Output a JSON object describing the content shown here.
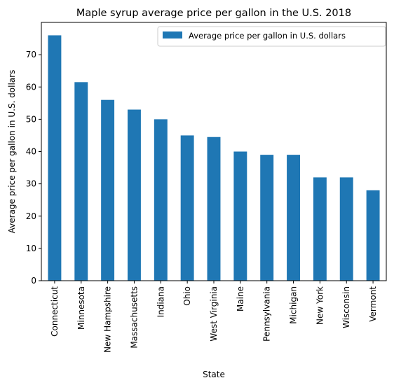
{
  "chart_data": {
    "type": "bar",
    "title": "Maple syrup average price per gallon in the U.S. 2018",
    "xlabel": "State",
    "ylabel": "Average price per gallon in U.S. dollars",
    "categories": [
      "Connecticut",
      "Minnesota",
      "New Hampshire",
      "Massachusetts",
      "Indiana",
      "Ohio",
      "West Virginia",
      "Maine",
      "Pennsylvania",
      "Michigan",
      "New York",
      "Wisconsin",
      "Vermont"
    ],
    "series": [
      {
        "name": "Average price per gallon in U.S. dollars",
        "color": "#1f77b4",
        "values": [
          76.0,
          61.5,
          56.0,
          53.0,
          50.0,
          45.0,
          44.5,
          40.0,
          39.0,
          39.0,
          32.0,
          32.0,
          28.0
        ]
      }
    ],
    "ylim": [
      0,
      80
    ],
    "yticks": [
      0,
      10,
      20,
      30,
      40,
      50,
      60,
      70
    ],
    "grid": false,
    "legend_position": "top-right"
  }
}
